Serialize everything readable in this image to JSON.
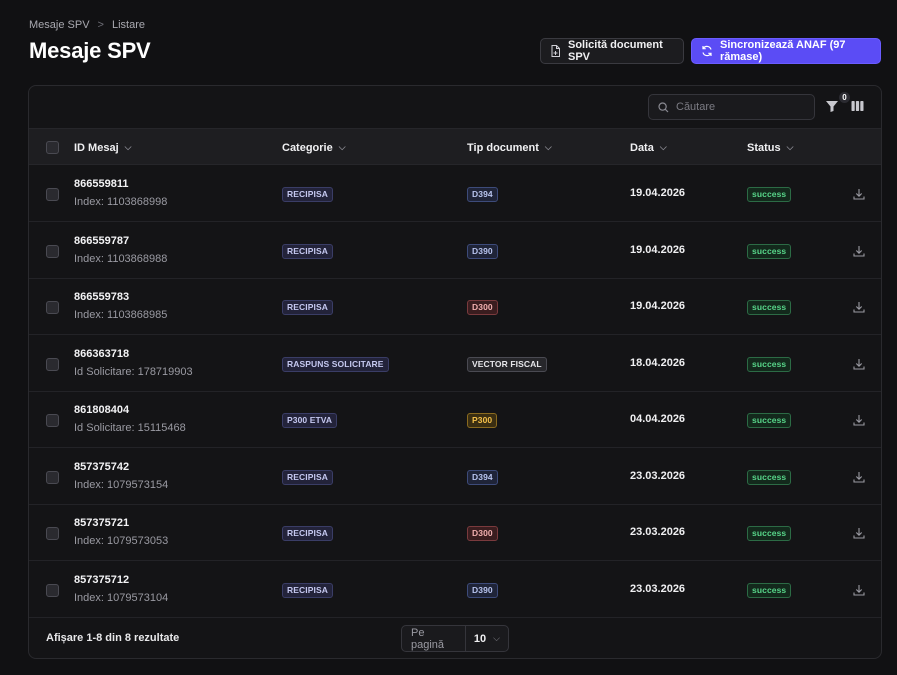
{
  "breadcrumb": {
    "root": "Mesaje SPV",
    "separator": ">",
    "current": "Listare"
  },
  "page": {
    "title": "Mesaje SPV"
  },
  "actions": {
    "request_label": "Solicită document SPV",
    "sync_label": "Sincronizează ANAF (97 rămase)"
  },
  "toolbar": {
    "search_placeholder": "Căutare",
    "filter_count": "0"
  },
  "table": {
    "headers": {
      "id": "ID Mesaj",
      "category": "Categorie",
      "doc_type": "Tip document",
      "date": "Data",
      "status": "Status"
    },
    "rows": [
      {
        "id": "866559811",
        "sub": "Index: 1103868998",
        "category": "RECIPISA",
        "doc_type": "D394",
        "doc_color": "blue",
        "date": "19.04.2026",
        "status": "success"
      },
      {
        "id": "866559787",
        "sub": "Index: 1103868988",
        "category": "RECIPISA",
        "doc_type": "D390",
        "doc_color": "blue",
        "date": "19.04.2026",
        "status": "success"
      },
      {
        "id": "866559783",
        "sub": "Index: 1103868985",
        "category": "RECIPISA",
        "doc_type": "D300",
        "doc_color": "red",
        "date": "19.04.2026",
        "status": "success"
      },
      {
        "id": "866363718",
        "sub": "Id Solicitare: 178719903",
        "category": "RASPUNS SOLICITARE",
        "doc_type": "VECTOR FISCAL",
        "doc_color": "gray",
        "date": "18.04.2026",
        "status": "success"
      },
      {
        "id": "861808404",
        "sub": "Id Solicitare: 15115468",
        "category": "P300 ETVA",
        "doc_type": "P300",
        "doc_color": "yellow",
        "date": "04.04.2026",
        "status": "success"
      },
      {
        "id": "857375742",
        "sub": "Index: 1079573154",
        "category": "RECIPISA",
        "doc_type": "D394",
        "doc_color": "blue",
        "date": "23.03.2026",
        "status": "success"
      },
      {
        "id": "857375721",
        "sub": "Index: 1079573053",
        "category": "RECIPISA",
        "doc_type": "D300",
        "doc_color": "red",
        "date": "23.03.2026",
        "status": "success"
      },
      {
        "id": "857375712",
        "sub": "Index: 1079573104",
        "category": "RECIPISA",
        "doc_type": "D390",
        "doc_color": "blue",
        "date": "23.03.2026",
        "status": "success"
      }
    ]
  },
  "footer": {
    "results_text": "Afișare 1-8 din 8 rezultate",
    "per_page_label": "Pe pagină",
    "per_page_value": "10"
  },
  "colors": {
    "background": "#111113",
    "accent": "#5b4cf5",
    "success": "#58d68a",
    "warning": "#f4c04a",
    "danger": "#f2b0b0"
  },
  "icons": {
    "request": "file-plus-icon",
    "sync": "refresh-icon",
    "search": "search-icon",
    "filter": "filter-icon",
    "columns": "columns-icon",
    "download": "download-icon",
    "sort": "chevron-down-icon"
  }
}
